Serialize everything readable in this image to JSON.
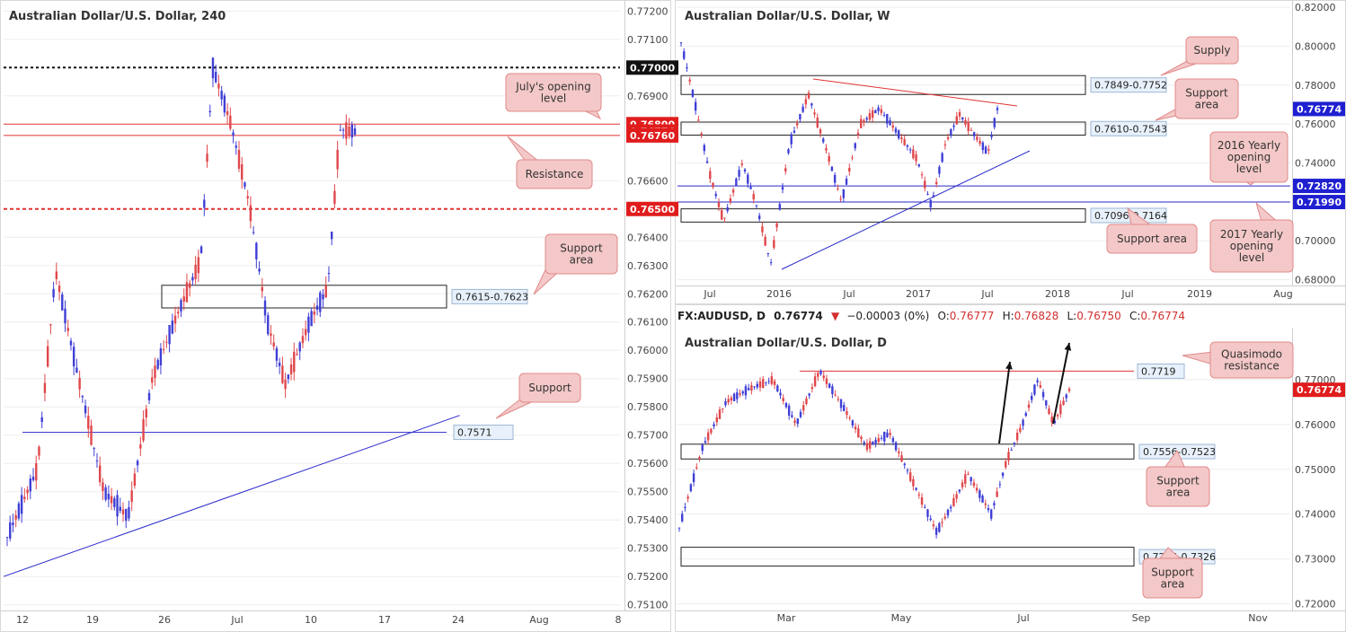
{
  "colors": {
    "up_candle": "#3f3fd6",
    "down_candle": "#e0474c",
    "resistance_red": "#e03333",
    "support_blue": "#2a2acb",
    "callout_fill": "#f4c8c8",
    "callout_border": "#e08a8a",
    "axis_text": "#444444",
    "grid": "#eeeeee"
  },
  "chart_data": [
    {
      "type": "candlestick",
      "title": "Australian Dollar/U.S. Dollar, 240",
      "ylim": [
        0.7508,
        0.7722
      ],
      "y_ticks": [
        "0.77200",
        "0.77100",
        "0.76900",
        "0.76600",
        "0.76400",
        "0.76300",
        "0.76200",
        "0.76100",
        "0.76000",
        "0.75900",
        "0.75800",
        "0.75700",
        "0.75600",
        "0.75500",
        "0.75400",
        "0.75300",
        "0.75200",
        "0.75100"
      ],
      "x_ticks": [
        "12",
        "19",
        "26",
        "Jul",
        "10",
        "17",
        "24",
        "Aug",
        "8"
      ],
      "price_tags": [
        {
          "label": "0.77000",
          "value": 0.77,
          "style": "black"
        },
        {
          "label": "0.76800",
          "value": 0.768,
          "style": "red"
        },
        {
          "label": "0.76774",
          "value": 0.76774,
          "style": "red"
        },
        {
          "label": "0.76760",
          "value": 0.7676,
          "style": "red"
        },
        {
          "label": "0.76500",
          "value": 0.765,
          "style": "red"
        }
      ],
      "levels": [
        {
          "name": "round-number-0.7700",
          "value": 0.77,
          "style": "black-dotted"
        },
        {
          "name": "julys-opening-level",
          "value": 0.768,
          "style": "red"
        },
        {
          "name": "resistance",
          "value": 0.7676,
          "style": "red"
        },
        {
          "name": "mid-level-0.7650",
          "value": 0.765,
          "style": "red-dashed"
        },
        {
          "name": "support-0.7571",
          "value": 0.7571,
          "style": "blue"
        }
      ],
      "zones": [
        {
          "label": "0.7615-0.7623",
          "low": 0.7615,
          "high": 0.7623
        }
      ],
      "level_labels": [
        "0.7571"
      ],
      "trendline": {
        "from": [
          0.0,
          0.752
        ],
        "to": [
          0.74,
          0.7577
        ]
      },
      "series": [
        {
          "t": 0.0,
          "o": 0.7527,
          "c": 0.7534
        },
        {
          "t": 0.05,
          "o": 0.7534,
          "c": 0.7558
        },
        {
          "t": 0.08,
          "o": 0.7558,
          "c": 0.7628
        },
        {
          "t": 0.12,
          "o": 0.7628,
          "c": 0.7588
        },
        {
          "t": 0.16,
          "o": 0.7588,
          "c": 0.755
        },
        {
          "t": 0.2,
          "o": 0.755,
          "c": 0.7541
        },
        {
          "t": 0.24,
          "o": 0.7541,
          "c": 0.759
        },
        {
          "t": 0.28,
          "o": 0.759,
          "c": 0.7612
        },
        {
          "t": 0.32,
          "o": 0.7612,
          "c": 0.7632
        },
        {
          "t": 0.34,
          "o": 0.7632,
          "c": 0.77
        },
        {
          "t": 0.37,
          "o": 0.77,
          "c": 0.768
        },
        {
          "t": 0.4,
          "o": 0.768,
          "c": 0.7652
        },
        {
          "t": 0.43,
          "o": 0.7652,
          "c": 0.761
        },
        {
          "t": 0.46,
          "o": 0.761,
          "c": 0.7588
        },
        {
          "t": 0.5,
          "o": 0.7588,
          "c": 0.761
        },
        {
          "t": 0.53,
          "o": 0.761,
          "c": 0.7622
        },
        {
          "t": 0.55,
          "o": 0.7622,
          "c": 0.7678
        },
        {
          "t": 0.575,
          "o": 0.7678,
          "c": 0.76774
        }
      ],
      "annotations": [
        "July's opening level",
        "Resistance",
        "Support area",
        "Support"
      ]
    },
    {
      "type": "candlestick",
      "title": "Australian Dollar/U.S. Dollar, W",
      "ylim": [
        0.677,
        0.821
      ],
      "y_ticks": [
        "0.82000",
        "0.80000",
        "0.78000",
        "0.76000",
        "0.74000",
        "0.70000",
        "0.68000"
      ],
      "x_ticks": [
        "Jul",
        "2016",
        "Jul",
        "2017",
        "Jul",
        "2018",
        "Jul",
        "2019",
        "Aug"
      ],
      "price_tags": [
        {
          "label": "0.76774",
          "value": 0.76774,
          "style": "blue"
        },
        {
          "label": "0.72820",
          "value": 0.7282,
          "style": "blue"
        },
        {
          "label": "0.71990",
          "value": 0.7199,
          "style": "blue"
        }
      ],
      "levels": [
        {
          "name": "2016-yearly-opening-level",
          "value": 0.7282,
          "style": "blue"
        },
        {
          "name": "2017-yearly-opening-level",
          "value": 0.7199,
          "style": "blue"
        }
      ],
      "zones": [
        {
          "label": "0.7849-0.7752",
          "low": 0.7752,
          "high": 0.7849
        },
        {
          "label": "0.7610-0.7543",
          "low": 0.7543,
          "high": 0.761
        },
        {
          "label": "0.7096-0.7164",
          "low": 0.7096,
          "high": 0.7164
        }
      ],
      "series": [
        {
          "t": 0.0,
          "o": 0.775,
          "c": 0.802
        },
        {
          "t": 0.03,
          "o": 0.802,
          "c": 0.77
        },
        {
          "t": 0.06,
          "o": 0.77,
          "c": 0.735
        },
        {
          "t": 0.09,
          "o": 0.735,
          "c": 0.71
        },
        {
          "t": 0.13,
          "o": 0.71,
          "c": 0.74
        },
        {
          "t": 0.16,
          "o": 0.74,
          "c": 0.718
        },
        {
          "t": 0.19,
          "o": 0.718,
          "c": 0.688
        },
        {
          "t": 0.23,
          "o": 0.688,
          "c": 0.75
        },
        {
          "t": 0.27,
          "o": 0.75,
          "c": 0.775
        },
        {
          "t": 0.31,
          "o": 0.775,
          "c": 0.745
        },
        {
          "t": 0.34,
          "o": 0.745,
          "c": 0.72
        },
        {
          "t": 0.38,
          "o": 0.72,
          "c": 0.76
        },
        {
          "t": 0.42,
          "o": 0.76,
          "c": 0.768
        },
        {
          "t": 0.46,
          "o": 0.768,
          "c": 0.755
        },
        {
          "t": 0.5,
          "o": 0.755,
          "c": 0.742
        },
        {
          "t": 0.53,
          "o": 0.742,
          "c": 0.718
        },
        {
          "t": 0.56,
          "o": 0.718,
          "c": 0.75
        },
        {
          "t": 0.59,
          "o": 0.75,
          "c": 0.765
        },
        {
          "t": 0.62,
          "o": 0.765,
          "c": 0.755
        },
        {
          "t": 0.65,
          "o": 0.755,
          "c": 0.745
        },
        {
          "t": 0.67,
          "o": 0.745,
          "c": 0.7677
        }
      ],
      "annotations": [
        "Supply",
        "Support area",
        "2016 Yearly opening level",
        "Support area",
        "2017 Yearly opening level"
      ]
    },
    {
      "type": "candlestick",
      "title": "Australian Dollar/U.S. Dollar, D",
      "ylim": [
        0.7185,
        0.781
      ],
      "y_ticks": [
        "0.77000",
        "0.76000",
        "0.75000",
        "0.74000",
        "0.73000",
        "0.72000"
      ],
      "x_ticks": [
        "Mar",
        "May",
        "Jul",
        "Sep",
        "Nov"
      ],
      "price_tags": [
        {
          "label": "0.76774",
          "value": 0.76774,
          "style": "red"
        }
      ],
      "levels": [
        {
          "name": "quasimodo-resistance",
          "value": 0.7719,
          "style": "red"
        }
      ],
      "zones": [
        {
          "label": "0.7556-0.7523",
          "low": 0.7523,
          "high": 0.7556
        },
        {
          "label": "0.7284-0.7326",
          "low": 0.7284,
          "high": 0.7326
        }
      ],
      "level_labels": [
        "0.7719"
      ],
      "series": [
        {
          "t": 0.0,
          "o": 0.725,
          "c": 0.737
        },
        {
          "t": 0.03,
          "o": 0.737,
          "c": 0.755
        },
        {
          "t": 0.06,
          "o": 0.755,
          "c": 0.765
        },
        {
          "t": 0.09,
          "o": 0.765,
          "c": 0.768
        },
        {
          "t": 0.12,
          "o": 0.768,
          "c": 0.77
        },
        {
          "t": 0.15,
          "o": 0.77,
          "c": 0.76
        },
        {
          "t": 0.18,
          "o": 0.76,
          "c": 0.772
        },
        {
          "t": 0.21,
          "o": 0.772,
          "c": 0.764
        },
        {
          "t": 0.24,
          "o": 0.764,
          "c": 0.755
        },
        {
          "t": 0.27,
          "o": 0.755,
          "c": 0.758
        },
        {
          "t": 0.3,
          "o": 0.758,
          "c": 0.747
        },
        {
          "t": 0.33,
          "o": 0.747,
          "c": 0.736
        },
        {
          "t": 0.35,
          "o": 0.736,
          "c": 0.742
        },
        {
          "t": 0.37,
          "o": 0.742,
          "c": 0.749
        },
        {
          "t": 0.4,
          "o": 0.749,
          "c": 0.74
        },
        {
          "t": 0.42,
          "o": 0.74,
          "c": 0.752
        },
        {
          "t": 0.44,
          "o": 0.752,
          "c": 0.76
        },
        {
          "t": 0.46,
          "o": 0.76,
          "c": 0.77
        },
        {
          "t": 0.48,
          "o": 0.77,
          "c": 0.76
        },
        {
          "t": 0.5,
          "o": 0.76,
          "c": 0.7677
        }
      ],
      "annotations": [
        "Quasimodo resistance",
        "Support area",
        "Support area"
      ]
    }
  ],
  "daily_header": {
    "symbol": "FX:AUDUSD, D",
    "last": "0.76774",
    "change": "−0.00003 (0%)",
    "o_label": "O:",
    "o": "0.76777",
    "h_label": "H:",
    "h": "0.76828",
    "l_label": "L:",
    "l": "0.76750",
    "c_label": "C:",
    "c": "0.76774"
  },
  "callouts": {
    "h4_july": "July's opening level",
    "h4_resistance": "Resistance",
    "h4_support_area": "Support area",
    "h4_support": "Support",
    "w_supply": "Supply",
    "w_support_area": "Support area",
    "w_2016": "2016 Yearly opening level",
    "w_support_area_low": "Support area",
    "w_2017": "2017 Yearly opening level",
    "d_quasimodo": "Quasimodo resistance",
    "d_support_area_1": "Support area",
    "d_support_area_2": "Support area"
  }
}
